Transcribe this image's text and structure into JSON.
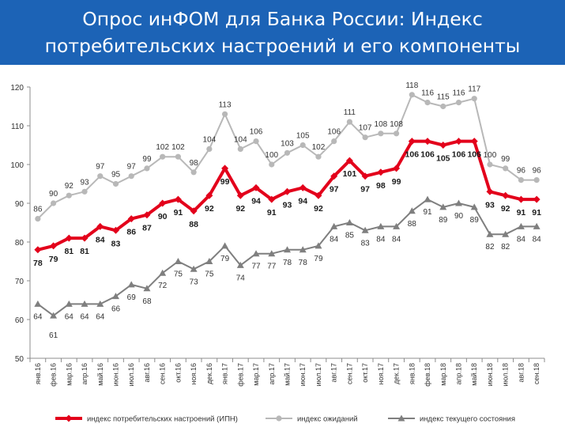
{
  "header": {
    "title_line1": "Опрос инФОМ для Банка России: Индекс",
    "title_line2": "потребительских настроений и его компоненты"
  },
  "chart_data": {
    "type": "line",
    "ylim": [
      50,
      120
    ],
    "yticks": [
      50,
      60,
      70,
      80,
      90,
      100,
      110,
      120
    ],
    "grid": false,
    "legend_position": "bottom",
    "categories": [
      "янв.16",
      "фев.16",
      "мар.16",
      "апр.16",
      "май.16",
      "июн.16",
      "июл.16",
      "авг.16",
      "сен.16",
      "окт.16",
      "ноя.16",
      "дек.16",
      "янв.17",
      "фев.17",
      "мар.17",
      "апр.17",
      "май.17",
      "июн.17",
      "июл.17",
      "авг.17",
      "сен.17",
      "окт.17",
      "ноя.17",
      "дек.17",
      "янв.18",
      "фев.18",
      "мар.18",
      "апр.18",
      "май.18",
      "июн.18",
      "июл.18",
      "авг.18",
      "сен.18"
    ],
    "series": [
      {
        "name": "индекс потребительских настроений (ИПН)",
        "color": "#e3001b",
        "values": [
          78,
          79,
          81,
          81,
          84,
          83,
          86,
          87,
          90,
          91,
          88,
          92,
          99,
          92,
          94,
          91,
          93,
          94,
          92,
          97,
          101,
          97,
          98,
          99,
          106,
          106,
          105,
          106,
          106,
          93,
          92,
          91,
          91
        ]
      },
      {
        "name": "индекс ожиданий",
        "color": "#b8b8b8",
        "values": [
          86,
          90,
          92,
          93,
          97,
          95,
          97,
          99,
          102,
          102,
          98,
          104,
          113,
          104,
          106,
          100,
          103,
          105,
          102,
          106,
          111,
          107,
          108,
          108,
          118,
          116,
          115,
          116,
          117,
          100,
          99,
          96,
          96
        ]
      },
      {
        "name": "индекс текущего состояния",
        "color": "#7f7f7f",
        "values": [
          64,
          61,
          64,
          64,
          64,
          66,
          69,
          68,
          72,
          75,
          73,
          75,
          79,
          74,
          77,
          77,
          78,
          78,
          79,
          84,
          85,
          83,
          84,
          84,
          88,
          91,
          89,
          90,
          89,
          82,
          82,
          84,
          84
        ]
      }
    ]
  }
}
